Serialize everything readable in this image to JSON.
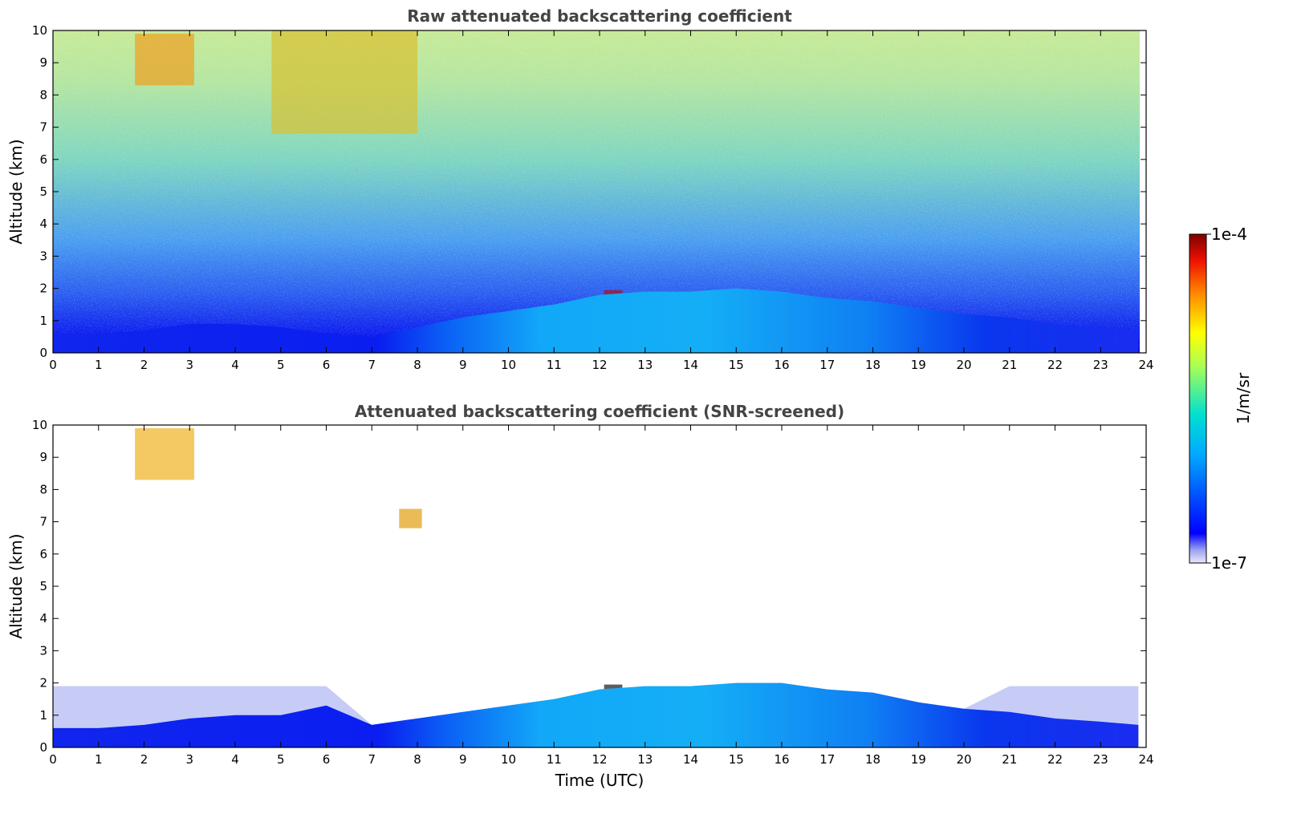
{
  "chart_data": [
    {
      "type": "heatmap",
      "title": "Raw attenuated backscattering coefficient",
      "xlabel": "",
      "ylabel": "Altitude (km)",
      "xlim": [
        0,
        24
      ],
      "ylim": [
        0,
        10
      ],
      "x_ticks": [
        "0",
        "1",
        "2",
        "3",
        "4",
        "5",
        "6",
        "7",
        "8",
        "9",
        "10",
        "11",
        "12",
        "13",
        "14",
        "15",
        "16",
        "17",
        "18",
        "19",
        "20",
        "21",
        "22",
        "23",
        "24"
      ],
      "y_ticks": [
        "0",
        "1",
        "2",
        "3",
        "4",
        "5",
        "6",
        "7",
        "8",
        "9",
        "10"
      ],
      "data_extent_x": [
        0,
        23.83
      ],
      "layer_top_km": {
        "x": [
          0,
          1,
          2,
          3,
          4,
          5,
          6,
          7,
          8,
          9,
          10,
          11,
          12,
          13,
          14,
          15,
          16,
          17,
          18,
          19,
          20,
          21,
          22,
          23,
          23.83
        ],
        "y": [
          0.6,
          0.6,
          0.7,
          0.9,
          0.9,
          0.8,
          0.6,
          0.5,
          0.8,
          1.1,
          1.3,
          1.5,
          1.8,
          1.9,
          1.9,
          2.0,
          1.9,
          1.7,
          1.6,
          1.4,
          1.2,
          1.1,
          0.9,
          0.8,
          0.7
        ]
      },
      "features": [
        {
          "label": "",
          "x": [
            1.8,
            3.1
          ],
          "y": [
            8.3,
            9.9
          ]
        },
        {
          "label": "",
          "x": [
            4.8,
            8.0
          ],
          "y": [
            6.8,
            10
          ]
        },
        {
          "label": "",
          "x": [
            12.1,
            12.5
          ],
          "y": [
            1.8,
            1.95
          ]
        }
      ],
      "grid": false
    },
    {
      "type": "heatmap",
      "title": "Attenuated backscattering coefficient (SNR-screened)",
      "xlabel": "Time (UTC)",
      "ylabel": "Altitude (km)",
      "xlim": [
        0,
        24
      ],
      "ylim": [
        0,
        10
      ],
      "x_ticks": [
        "0",
        "1",
        "2",
        "3",
        "4",
        "5",
        "6",
        "7",
        "8",
        "9",
        "10",
        "11",
        "12",
        "13",
        "14",
        "15",
        "16",
        "17",
        "18",
        "19",
        "20",
        "21",
        "22",
        "23",
        "24"
      ],
      "y_ticks": [
        "0",
        "1",
        "2",
        "3",
        "4",
        "5",
        "6",
        "7",
        "8",
        "9",
        "10"
      ],
      "data_extent_x": [
        0,
        23.83
      ],
      "layer_top_km": {
        "x": [
          0,
          1,
          2,
          3,
          4,
          5,
          6,
          7,
          8,
          9,
          10,
          11,
          12,
          13,
          14,
          15,
          16,
          17,
          18,
          19,
          20,
          21,
          22,
          23,
          23.83
        ],
        "y": [
          0.6,
          0.6,
          0.7,
          0.9,
          1.0,
          1.0,
          1.3,
          0.7,
          0.9,
          1.1,
          1.3,
          1.5,
          1.8,
          1.9,
          1.9,
          2.0,
          2.0,
          1.8,
          1.7,
          1.4,
          1.2,
          1.1,
          0.9,
          0.8,
          0.7
        ]
      },
      "features": [
        {
          "label": "",
          "x": [
            1.8,
            3.1
          ],
          "y": [
            8.3,
            9.9
          ]
        },
        {
          "label": "",
          "x": [
            7.6,
            8.1
          ],
          "y": [
            6.8,
            7.4
          ]
        },
        {
          "label": "",
          "x": [
            12.1,
            12.5
          ],
          "y": [
            1.8,
            1.95
          ]
        }
      ],
      "grid": false
    }
  ],
  "colorbar": {
    "label": "1/m/sr",
    "max_label": "1e-4",
    "min_label": "1e-7",
    "scale": "log",
    "range": [
      1e-07,
      0.0001
    ],
    "colormap": "jet"
  }
}
